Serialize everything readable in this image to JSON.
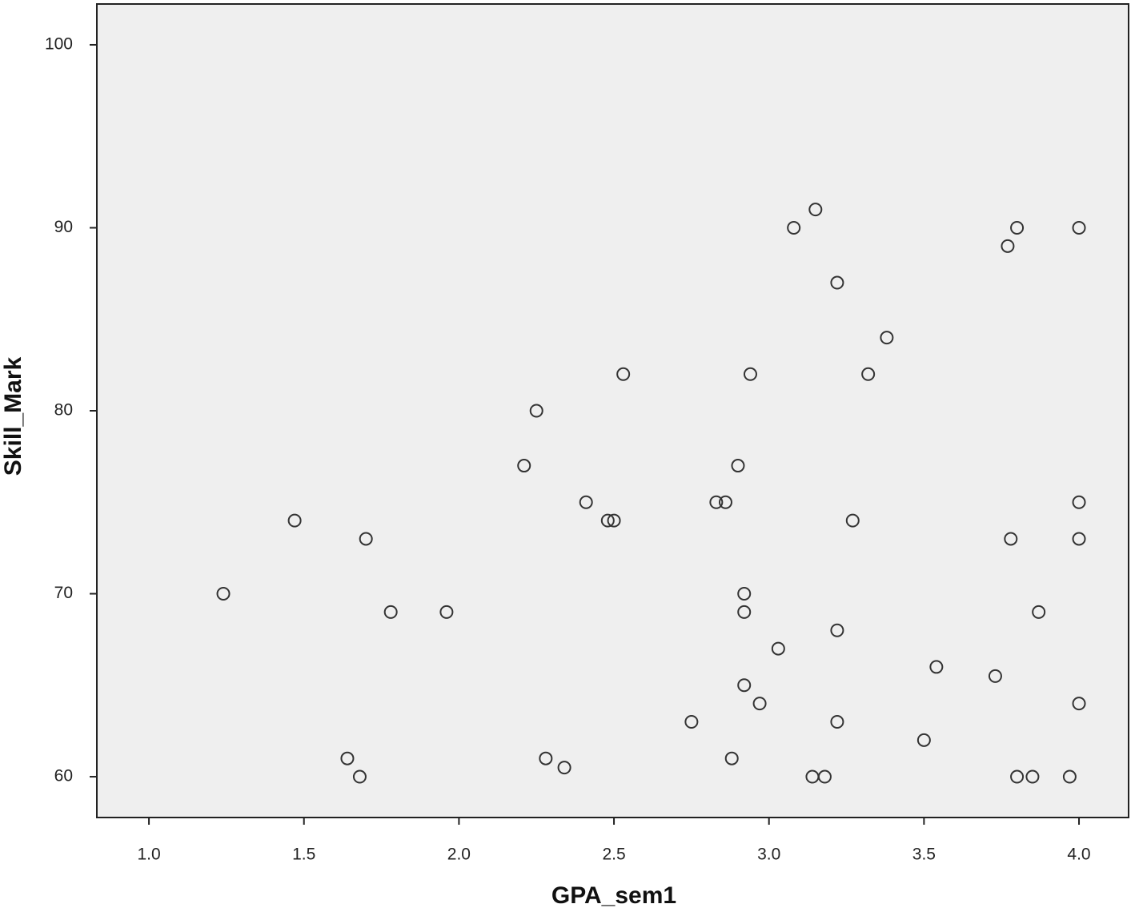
{
  "chart_data": {
    "type": "scatter",
    "x_label": "GPA_sem1",
    "y_label": "Skill_Mark",
    "x": [
      1.24,
      1.47,
      1.7,
      1.78,
      1.96,
      1.64,
      1.68,
      2.21,
      2.25,
      2.41,
      2.48,
      2.5,
      2.53,
      2.28,
      2.34,
      2.75,
      2.83,
      2.86,
      2.9,
      2.94,
      2.92,
      2.92,
      2.92,
      2.88,
      2.97,
      3.03,
      3.08,
      3.15,
      3.22,
      3.22,
      3.22,
      3.14,
      3.18,
      3.27,
      3.32,
      3.38,
      3.5,
      3.54,
      3.73,
      3.77,
      3.8,
      3.78,
      3.87,
      3.8,
      3.85,
      3.97,
      4.0,
      4.0,
      4.0,
      4.0
    ],
    "values": [
      70,
      74,
      73,
      69,
      69,
      61,
      60,
      77,
      80,
      75,
      74,
      74,
      82,
      61,
      60.5,
      63,
      75,
      75,
      77,
      82,
      70,
      69,
      65,
      61,
      64,
      67,
      90,
      91,
      87,
      68,
      63,
      60,
      60,
      74,
      82,
      84,
      62,
      66,
      65.5,
      89,
      90,
      73,
      69,
      60,
      60,
      60,
      90,
      75,
      73,
      64
    ],
    "color": "#333333",
    "background": "#efefef",
    "xlim": [
      0.832,
      4.16
    ],
    "ylim": [
      57.77,
      102.23
    ],
    "xticks": [
      {
        "value": 1,
        "label": "1.0"
      },
      {
        "value": 1.5,
        "label": "1.5"
      },
      {
        "value": 2,
        "label": "2.0"
      },
      {
        "value": 2.5,
        "label": "2.5"
      },
      {
        "value": 3,
        "label": "3.0"
      },
      {
        "value": 3.5,
        "label": "3.5"
      },
      {
        "value": 4,
        "label": "4.0"
      }
    ],
    "yticks": [
      60,
      70,
      80,
      90,
      100
    ]
  }
}
